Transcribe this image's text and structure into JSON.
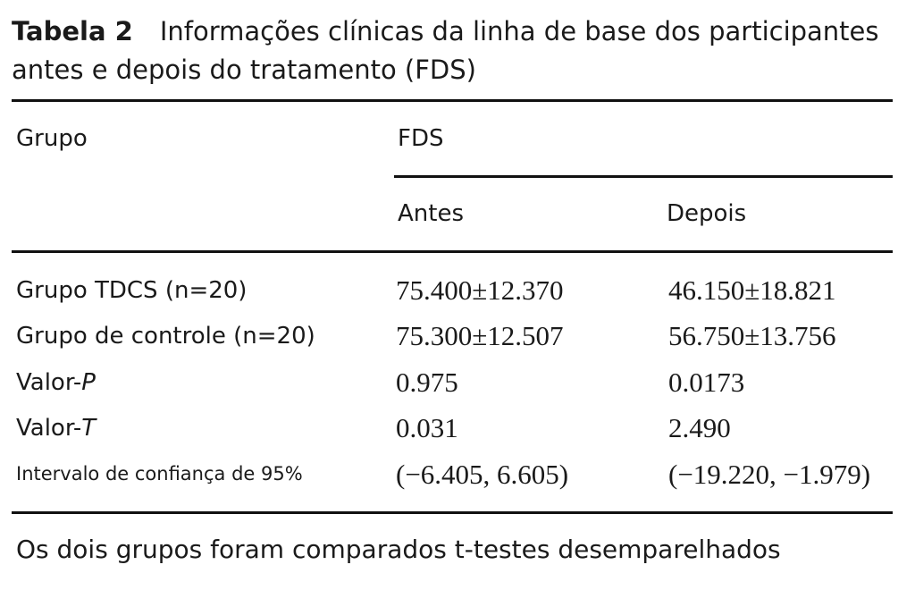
{
  "caption": {
    "label": "Tabela 2",
    "line1": "Informações clínicas da linha de base dos participantes",
    "line2": "antes e depois do tratamento (FDS)"
  },
  "table": {
    "headers": {
      "group": "Grupo",
      "measure": "FDS",
      "before": "Antes",
      "after": "Depois"
    },
    "rows": [
      {
        "label": "Grupo TDCS (n=20)",
        "label_suffix": "",
        "before": "75.400±12.370",
        "after": "46.150±18.821"
      },
      {
        "label": "Grupo de controle (n=20)",
        "label_suffix": "",
        "before": "75.300±12.507",
        "after": "56.750±13.756"
      },
      {
        "label": "Valor-",
        "label_suffix": "P",
        "before": "0.975",
        "after": "0.0173"
      },
      {
        "label": "Valor-",
        "label_suffix": "T",
        "before": "0.031",
        "after": "2.490"
      },
      {
        "label": "Intervalo de confiança de 95%",
        "label_suffix": "",
        "before": "(−6.405, 6.605)",
        "after": "(−19.220, −1.979)"
      }
    ]
  },
  "note": "Os dois grupos foram comparados t-testes desemparelhados"
}
